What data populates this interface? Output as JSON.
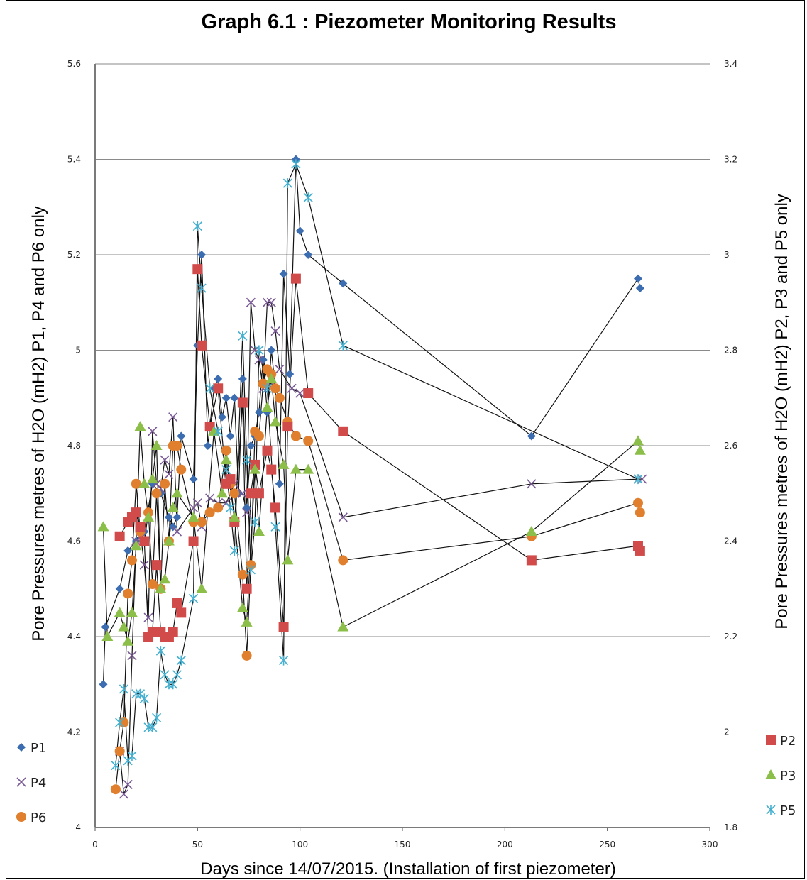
{
  "chart_data": {
    "type": "scatter",
    "title": "Graph 6.1 : Piezometer Monitoring Results",
    "xlabel": "Days since 14/07/2015. (Installation of first piezometer)",
    "ylabel_left": "Pore Pressures metres of H2O (mH2) P1, P4 and P6 only",
    "ylabel_right": "Pore Pressures metres of H2O (mH2) P2, P3 and P5 only",
    "xlim": [
      0,
      300
    ],
    "xticks": [
      "0",
      "50",
      "100",
      "150",
      "200",
      "250",
      "300"
    ],
    "ylim_left": [
      4.0,
      5.6
    ],
    "yticks_left": [
      "4",
      "4.2",
      "4.4",
      "4.6",
      "4.8",
      "5",
      "5.2",
      "5.4",
      "5.6"
    ],
    "ylim_right": [
      1.8,
      3.4
    ],
    "yticks_right": [
      "1.8",
      "2",
      "2.2",
      "2.4",
      "2.6",
      "2.8",
      "3",
      "3.2",
      "3.4"
    ],
    "grid": true,
    "legend_left": "bottom-left",
    "legend_right": "bottom-right",
    "series": [
      {
        "name": "P1",
        "axis": "left",
        "marker": "diamond",
        "color": "#3c6db1",
        "points": [
          [
            4,
            4.3
          ],
          [
            5,
            4.42
          ],
          [
            12,
            4.5
          ],
          [
            16,
            4.58
          ],
          [
            20,
            4.6
          ],
          [
            24,
            4.62
          ],
          [
            28,
            4.72
          ],
          [
            32,
            4.7
          ],
          [
            36,
            4.65
          ],
          [
            38,
            4.63
          ],
          [
            40,
            4.65
          ],
          [
            42,
            4.82
          ],
          [
            48,
            4.73
          ],
          [
            50,
            5.01
          ],
          [
            52,
            5.2
          ],
          [
            55,
            4.8
          ],
          [
            58,
            4.92
          ],
          [
            60,
            4.94
          ],
          [
            62,
            4.86
          ],
          [
            64,
            4.9
          ],
          [
            66,
            4.82
          ],
          [
            68,
            4.9
          ],
          [
            70,
            4.7
          ],
          [
            72,
            4.94
          ],
          [
            74,
            4.67
          ],
          [
            76,
            4.8
          ],
          [
            78,
            4.82
          ],
          [
            80,
            4.87
          ],
          [
            82,
            4.98
          ],
          [
            84,
            4.87
          ],
          [
            86,
            5.0
          ],
          [
            88,
            4.92
          ],
          [
            90,
            4.72
          ],
          [
            92,
            5.16
          ],
          [
            95,
            4.95
          ],
          [
            98,
            5.4
          ],
          [
            100,
            5.25
          ],
          [
            104,
            5.2
          ],
          [
            121,
            5.14
          ],
          [
            213,
            4.82
          ],
          [
            265,
            5.15
          ],
          [
            266,
            5.13
          ]
        ]
      },
      {
        "name": "P4",
        "axis": "left",
        "marker": "x",
        "color": "#7a5a96",
        "points": [
          [
            12,
            4.16
          ],
          [
            14,
            4.07
          ],
          [
            16,
            4.09
          ],
          [
            18,
            4.36
          ],
          [
            20,
            4.6
          ],
          [
            22,
            4.62
          ],
          [
            24,
            4.55
          ],
          [
            26,
            4.44
          ],
          [
            28,
            4.83
          ],
          [
            30,
            4.72
          ],
          [
            32,
            4.71
          ],
          [
            34,
            4.77
          ],
          [
            36,
            4.74
          ],
          [
            38,
            4.86
          ],
          [
            40,
            4.62
          ],
          [
            48,
            4.67
          ],
          [
            50,
            4.68
          ],
          [
            52,
            4.63
          ],
          [
            56,
            4.69
          ],
          [
            60,
            4.68
          ],
          [
            64,
            4.68
          ],
          [
            68,
            4.72
          ],
          [
            72,
            4.7
          ],
          [
            74,
            4.66
          ],
          [
            76,
            5.1
          ],
          [
            78,
            5.0
          ],
          [
            80,
            4.98
          ],
          [
            82,
            4.92
          ],
          [
            84,
            5.1
          ],
          [
            86,
            5.1
          ],
          [
            88,
            5.04
          ],
          [
            90,
            4.96
          ],
          [
            96,
            4.92
          ],
          [
            100,
            4.91
          ],
          [
            121,
            4.65
          ],
          [
            213,
            4.72
          ],
          [
            265,
            4.73
          ],
          [
            267,
            4.73
          ]
        ]
      },
      {
        "name": "P6",
        "axis": "left",
        "marker": "circle",
        "color": "#e07f2d",
        "points": [
          [
            10,
            4.08
          ],
          [
            12,
            4.16
          ],
          [
            14,
            4.22
          ],
          [
            16,
            4.49
          ],
          [
            18,
            4.56
          ],
          [
            20,
            4.72
          ],
          [
            22,
            4.62
          ],
          [
            24,
            4.6
          ],
          [
            26,
            4.66
          ],
          [
            28,
            4.51
          ],
          [
            30,
            4.7
          ],
          [
            32,
            4.5
          ],
          [
            34,
            4.72
          ],
          [
            36,
            4.6
          ],
          [
            38,
            4.8
          ],
          [
            40,
            4.8
          ],
          [
            42,
            4.75
          ],
          [
            48,
            4.64
          ],
          [
            52,
            4.64
          ],
          [
            56,
            4.66
          ],
          [
            60,
            4.67
          ],
          [
            64,
            4.79
          ],
          [
            66,
            4.72
          ],
          [
            68,
            4.7
          ],
          [
            72,
            4.53
          ],
          [
            74,
            4.36
          ],
          [
            76,
            4.55
          ],
          [
            78,
            4.83
          ],
          [
            80,
            4.82
          ],
          [
            82,
            4.93
          ],
          [
            84,
            4.96
          ],
          [
            86,
            4.95
          ],
          [
            88,
            4.92
          ],
          [
            90,
            4.9
          ],
          [
            94,
            4.85
          ],
          [
            98,
            4.82
          ],
          [
            104,
            4.81
          ],
          [
            121,
            4.56
          ],
          [
            213,
            4.61
          ],
          [
            265,
            4.68
          ],
          [
            266,
            4.66
          ]
        ]
      },
      {
        "name": "P2",
        "axis": "right",
        "marker": "square",
        "color": "#d24b4b",
        "points": [
          [
            12,
            2.41
          ],
          [
            16,
            2.44
          ],
          [
            18,
            2.45
          ],
          [
            20,
            2.46
          ],
          [
            22,
            2.43
          ],
          [
            24,
            2.4
          ],
          [
            26,
            2.2
          ],
          [
            28,
            2.21
          ],
          [
            30,
            2.35
          ],
          [
            32,
            2.21
          ],
          [
            34,
            2.2
          ],
          [
            36,
            2.2
          ],
          [
            38,
            2.21
          ],
          [
            40,
            2.27
          ],
          [
            42,
            2.25
          ],
          [
            48,
            2.4
          ],
          [
            50,
            2.97
          ],
          [
            52,
            2.81
          ],
          [
            56,
            2.64
          ],
          [
            60,
            2.72
          ],
          [
            64,
            2.52
          ],
          [
            66,
            2.53
          ],
          [
            68,
            2.44
          ],
          [
            72,
            2.69
          ],
          [
            74,
            2.3
          ],
          [
            76,
            2.5
          ],
          [
            78,
            2.56
          ],
          [
            80,
            2.5
          ],
          [
            84,
            2.59
          ],
          [
            86,
            2.55
          ],
          [
            88,
            2.47
          ],
          [
            92,
            2.22
          ],
          [
            94,
            2.64
          ],
          [
            98,
            2.95
          ],
          [
            104,
            2.71
          ],
          [
            121,
            2.63
          ],
          [
            213,
            2.36
          ],
          [
            265,
            2.39
          ],
          [
            266,
            2.38
          ]
        ]
      },
      {
        "name": "P3",
        "axis": "right",
        "marker": "triangle",
        "color": "#8cbf4a",
        "points": [
          [
            4,
            2.43
          ],
          [
            6,
            2.2
          ],
          [
            12,
            2.25
          ],
          [
            14,
            2.22
          ],
          [
            16,
            2.19
          ],
          [
            18,
            2.25
          ],
          [
            20,
            2.39
          ],
          [
            22,
            2.64
          ],
          [
            24,
            2.52
          ],
          [
            26,
            2.45
          ],
          [
            28,
            2.53
          ],
          [
            30,
            2.6
          ],
          [
            32,
            2.3
          ],
          [
            34,
            2.32
          ],
          [
            36,
            2.4
          ],
          [
            38,
            2.47
          ],
          [
            40,
            2.5
          ],
          [
            48,
            2.45
          ],
          [
            52,
            2.3
          ],
          [
            58,
            2.63
          ],
          [
            62,
            2.5
          ],
          [
            64,
            2.57
          ],
          [
            68,
            2.45
          ],
          [
            72,
            2.26
          ],
          [
            74,
            2.23
          ],
          [
            78,
            2.55
          ],
          [
            80,
            2.42
          ],
          [
            84,
            2.68
          ],
          [
            86,
            2.74
          ],
          [
            88,
            2.65
          ],
          [
            92,
            2.56
          ],
          [
            94,
            2.36
          ],
          [
            98,
            2.55
          ],
          [
            104,
            2.55
          ],
          [
            121,
            2.22
          ],
          [
            213,
            2.42
          ],
          [
            265,
            2.61
          ],
          [
            266,
            2.59
          ]
        ]
      },
      {
        "name": "P5",
        "axis": "right",
        "marker": "asterisk",
        "color": "#46b0d0",
        "points": [
          [
            10,
            1.93
          ],
          [
            12,
            2.02
          ],
          [
            14,
            2.09
          ],
          [
            16,
            1.94
          ],
          [
            18,
            1.95
          ],
          [
            20,
            2.08
          ],
          [
            22,
            2.08
          ],
          [
            24,
            2.07
          ],
          [
            26,
            2.01
          ],
          [
            28,
            2.01
          ],
          [
            30,
            2.03
          ],
          [
            32,
            2.17
          ],
          [
            34,
            2.12
          ],
          [
            36,
            2.1
          ],
          [
            38,
            2.1
          ],
          [
            40,
            2.12
          ],
          [
            42,
            2.15
          ],
          [
            48,
            2.28
          ],
          [
            50,
            3.06
          ],
          [
            52,
            2.93
          ],
          [
            56,
            2.72
          ],
          [
            60,
            2.63
          ],
          [
            64,
            2.55
          ],
          [
            66,
            2.47
          ],
          [
            68,
            2.38
          ],
          [
            72,
            2.83
          ],
          [
            74,
            2.57
          ],
          [
            76,
            2.34
          ],
          [
            78,
            2.44
          ],
          [
            80,
            2.8
          ],
          [
            84,
            2.72
          ],
          [
            88,
            2.43
          ],
          [
            92,
            2.15
          ],
          [
            94,
            3.15
          ],
          [
            98,
            3.19
          ],
          [
            104,
            3.12
          ],
          [
            121,
            2.81
          ],
          [
            265,
            2.53
          ]
        ]
      }
    ]
  }
}
